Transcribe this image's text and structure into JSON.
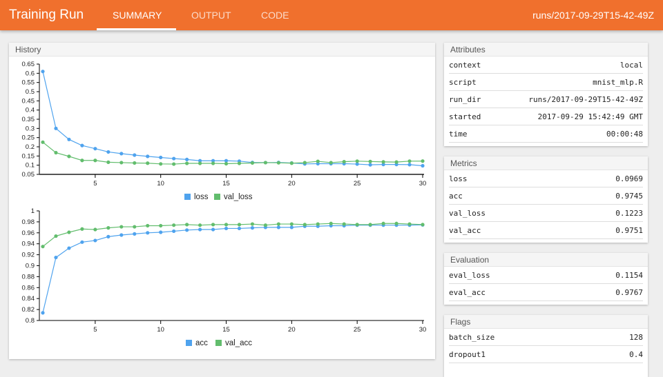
{
  "header": {
    "title": "Training Run",
    "tabs": [
      "SUMMARY",
      "OUTPUT",
      "CODE"
    ],
    "active_tab": "SUMMARY",
    "run": "runs/2017-09-29T15-42-49Z",
    "color": "#f0702d"
  },
  "history": {
    "title": "History"
  },
  "attributes": {
    "title": "Attributes",
    "rows": [
      [
        "context",
        "local"
      ],
      [
        "script",
        "mnist_mlp.R"
      ],
      [
        "run_dir",
        "runs/2017-09-29T15-42-49Z"
      ],
      [
        "started",
        "2017-09-29 15:42:49 GMT"
      ],
      [
        "time",
        "00:00:48"
      ]
    ]
  },
  "metrics": {
    "title": "Metrics",
    "rows": [
      [
        "loss",
        "0.0969"
      ],
      [
        "acc",
        "0.9745"
      ],
      [
        "val_loss",
        "0.1223"
      ],
      [
        "val_acc",
        "0.9751"
      ]
    ]
  },
  "evaluation": {
    "title": "Evaluation",
    "rows": [
      [
        "eval_loss",
        "0.1154"
      ],
      [
        "eval_acc",
        "0.9767"
      ]
    ]
  },
  "flags": {
    "title": "Flags",
    "rows": [
      [
        "batch_size",
        "128"
      ],
      [
        "dropout1",
        "0.4"
      ]
    ]
  },
  "chart_data": [
    {
      "type": "line",
      "x": [
        1,
        2,
        3,
        4,
        5,
        6,
        7,
        8,
        9,
        10,
        11,
        12,
        13,
        14,
        15,
        16,
        17,
        18,
        19,
        20,
        21,
        22,
        23,
        24,
        25,
        26,
        27,
        28,
        29,
        30
      ],
      "ylim": [
        0.05,
        0.65
      ],
      "yticks": [
        0.05,
        0.1,
        0.15,
        0.2,
        0.25,
        0.3,
        0.35,
        0.4,
        0.45,
        0.5,
        0.55,
        0.6,
        0.65
      ],
      "xticks": [
        5,
        10,
        15,
        20,
        25,
        30
      ],
      "legend": "bottom",
      "series": [
        {
          "name": "loss",
          "color": "#4fa3ee",
          "values": [
            0.61,
            0.3,
            0.24,
            0.207,
            0.19,
            0.172,
            0.163,
            0.155,
            0.148,
            0.142,
            0.136,
            0.131,
            0.124,
            0.124,
            0.124,
            0.122,
            0.115,
            0.114,
            0.115,
            0.112,
            0.107,
            0.108,
            0.108,
            0.108,
            0.106,
            0.102,
            0.104,
            0.104,
            0.103,
            0.0969
          ]
        },
        {
          "name": "val_loss",
          "color": "#62bd6d",
          "values": [
            0.225,
            0.168,
            0.148,
            0.126,
            0.126,
            0.116,
            0.114,
            0.112,
            0.111,
            0.107,
            0.106,
            0.11,
            0.11,
            0.11,
            0.108,
            0.11,
            0.112,
            0.114,
            0.113,
            0.111,
            0.114,
            0.121,
            0.114,
            0.119,
            0.122,
            0.12,
            0.118,
            0.117,
            0.122,
            0.1223
          ]
        }
      ]
    },
    {
      "type": "line",
      "x": [
        1,
        2,
        3,
        4,
        5,
        6,
        7,
        8,
        9,
        10,
        11,
        12,
        13,
        14,
        15,
        16,
        17,
        18,
        19,
        20,
        21,
        22,
        23,
        24,
        25,
        26,
        27,
        28,
        29,
        30
      ],
      "ylim": [
        0.8,
        1
      ],
      "yticks": [
        0.8,
        0.82,
        0.84,
        0.86,
        0.88,
        0.9,
        0.92,
        0.94,
        0.96,
        0.98,
        1
      ],
      "xticks": [
        5,
        10,
        15,
        20,
        25,
        30
      ],
      "legend": "bottom",
      "series": [
        {
          "name": "acc",
          "color": "#4fa3ee",
          "values": [
            0.814,
            0.915,
            0.932,
            0.943,
            0.946,
            0.953,
            0.956,
            0.958,
            0.96,
            0.961,
            0.963,
            0.965,
            0.966,
            0.966,
            0.968,
            0.968,
            0.969,
            0.97,
            0.97,
            0.97,
            0.972,
            0.972,
            0.973,
            0.973,
            0.974,
            0.974,
            0.974,
            0.974,
            0.974,
            0.9745
          ]
        },
        {
          "name": "val_acc",
          "color": "#62bd6d",
          "values": [
            0.935,
            0.954,
            0.961,
            0.967,
            0.966,
            0.969,
            0.971,
            0.971,
            0.973,
            0.973,
            0.974,
            0.975,
            0.974,
            0.975,
            0.975,
            0.975,
            0.976,
            0.974,
            0.976,
            0.976,
            0.975,
            0.976,
            0.977,
            0.976,
            0.975,
            0.975,
            0.977,
            0.977,
            0.976,
            0.9751
          ]
        }
      ]
    }
  ]
}
